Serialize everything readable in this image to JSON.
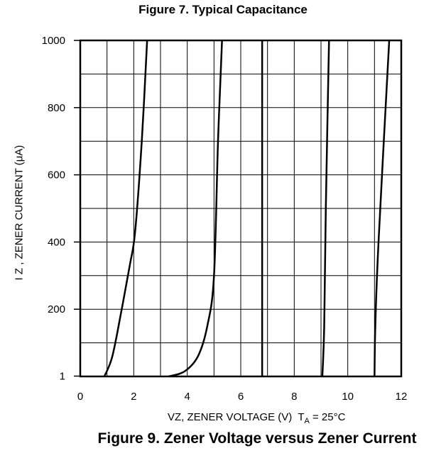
{
  "figure_top_title": "Figure 7. Typical Capacitance",
  "chart_data": {
    "type": "line",
    "title": "Figure 9. Zener Voltage versus Zener Current",
    "xlabel": "VZ, ZENER VOLTAGE (V)",
    "condition": {
      "prefix": "T",
      "subscript": "A",
      "suffix": " = 25°C"
    },
    "ylabel": "I Z , ZENER CURRENT (μA)",
    "xlim": [
      0,
      12
    ],
    "ylim": [
      0,
      1000
    ],
    "x_ticks": [
      0,
      2,
      4,
      6,
      8,
      10,
      12
    ],
    "x_tick_labels": [
      "0",
      "2",
      "4",
      "6",
      "8",
      "10",
      "12"
    ],
    "y_ticks": [
      1,
      200,
      400,
      600,
      800,
      1000
    ],
    "y_tick_labels": [
      "1",
      "200",
      "400",
      "600",
      "800",
      "1000"
    ],
    "grid": true,
    "series": [
      {
        "x": [
          0.9,
          1.2,
          1.55,
          1.85,
          2.05,
          2.3,
          2.5
        ],
        "y": [
          0,
          60,
          200,
          330,
          430,
          700,
          1000
        ]
      },
      {
        "x": [
          3.3,
          3.9,
          4.4,
          4.75,
          5.0,
          5.15,
          5.3
        ],
        "y": [
          0,
          15,
          60,
          150,
          300,
          700,
          1000
        ]
      },
      {
        "x": [
          6.8,
          6.8
        ],
        "y": [
          0,
          1000
        ]
      },
      {
        "x": [
          9.05,
          9.12,
          9.18,
          9.3
        ],
        "y": [
          0,
          150,
          500,
          1000
        ]
      },
      {
        "x": [
          11.0,
          11.03,
          11.15,
          11.55
        ],
        "y": [
          0,
          150,
          400,
          1000
        ]
      }
    ]
  }
}
